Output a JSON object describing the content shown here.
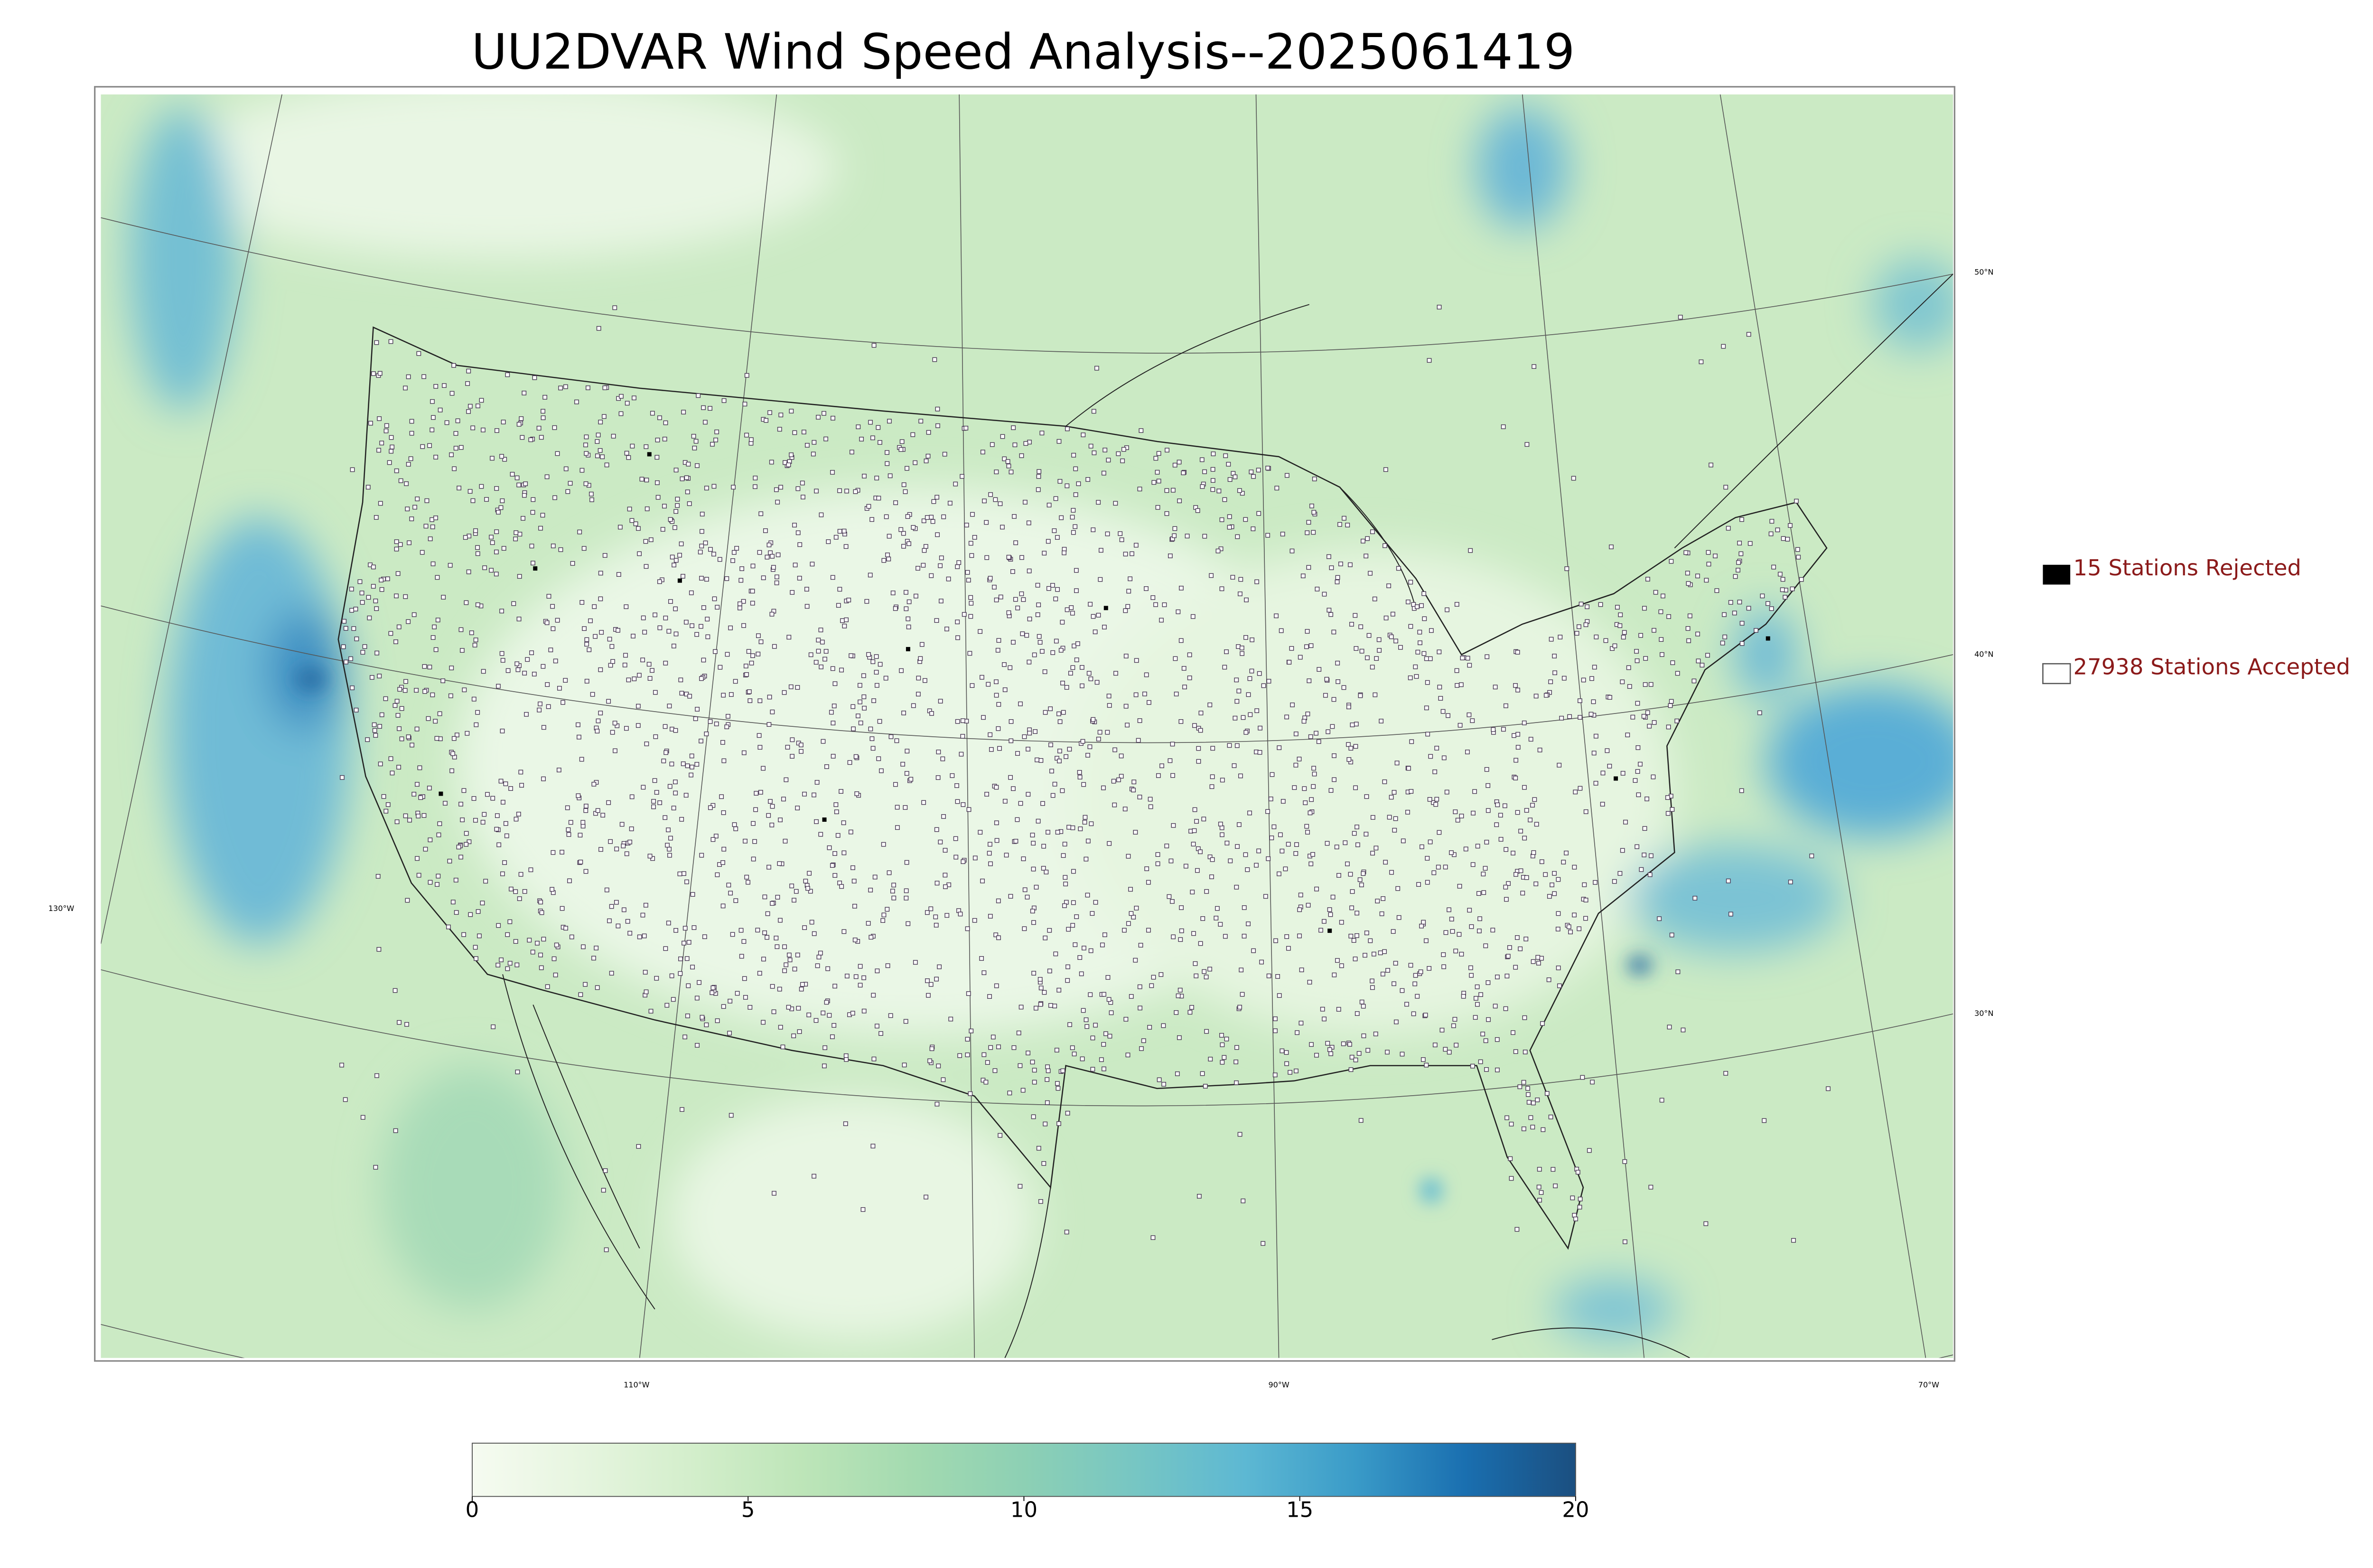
{
  "map": {
    "title": "UU2DVAR Wind Speed Analysis--2025061419",
    "latitude_labels": [
      "50°N",
      "40°N",
      "30°N"
    ],
    "longitude_labels": [
      "130°W",
      "110°W",
      "90°W",
      "70°W"
    ],
    "legend": {
      "rejected": "15 Stations Rejected",
      "accepted": "27938 Stations Accepted"
    },
    "colorbar": {
      "range": [
        0,
        20
      ],
      "ticks": [
        0,
        5,
        10,
        15,
        20
      ],
      "colors": [
        "#f6fbf1",
        "#e6f5df",
        "#d3eecb",
        "#bde5b8",
        "#a3dab0",
        "#8dd0b4",
        "#77c6c3",
        "#5db8d3",
        "#3a9bc8",
        "#1a6fb0",
        "#1b4f80"
      ]
    }
  }
}
